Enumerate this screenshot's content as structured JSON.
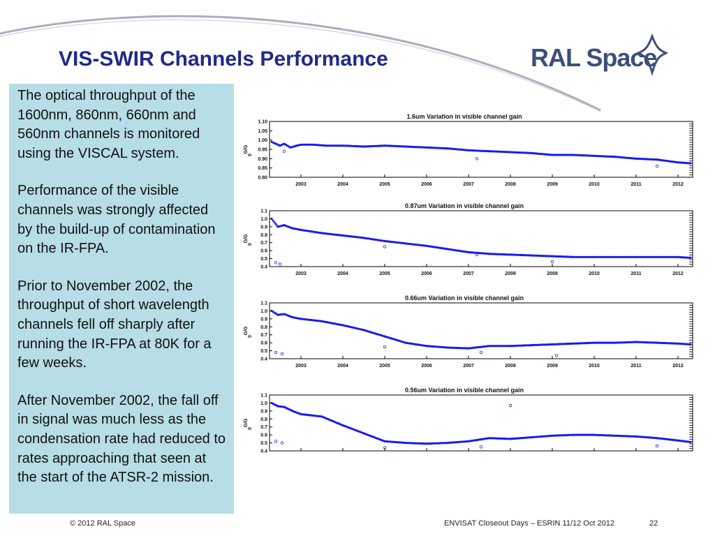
{
  "slide": {
    "title": "VIS-SWIR Channels Performance",
    "logo_text": "RAL Space",
    "paragraphs": [
      "The optical throughput of the 1600nm, 860nm, 660nm and 560nm channels is monitored using the VISCAL system.",
      "Performance of the visible channels was strongly affected by the build-up of contamination on the IR-FPA.",
      "Prior to November 2002, the throughput of short wavelength channels fell off sharply after running the IR-FPA at 80K for a few weeks.",
      "After November 2002, the fall off in signal was much less as the condensation rate had reduced to rates approaching that seen at the start of the ATSR-2 mission."
    ]
  },
  "footer": {
    "copyright": "© 2012 RAL Space",
    "event": "ENVISAT Closeout Days – ESRIN 11/12 Oct 2012",
    "page_number": "22"
  },
  "colors": {
    "title": "#1f2a8a",
    "textbox_bg": "#b7dde6",
    "series": "#1a1aee",
    "swoosh": "#a9b0bc"
  },
  "chart_data": [
    {
      "type": "scatter",
      "title": "1.6um Variation in visible channel gain",
      "ylabel": "G/G",
      "ylabel_sub": "0",
      "ylim": [
        0.8,
        1.1
      ],
      "yticks": [
        0.8,
        0.85,
        0.9,
        0.95,
        1.0,
        1.05,
        1.1
      ],
      "ytick_labels": [
        "0.80",
        "0.85",
        "0.90",
        "0.95",
        "1.00",
        "1.05",
        "1.10"
      ],
      "xlim": [
        2002.25,
        2012.35
      ],
      "xticks": [
        2003,
        2004,
        2005,
        2006,
        2007,
        2008,
        2009,
        2010,
        2011,
        2012
      ],
      "xtick_labels": [
        "2003",
        "2004",
        "2005",
        "2006",
        "2007",
        "2008",
        "2009",
        "2010",
        "2011",
        "2012"
      ],
      "series": [
        {
          "x": [
            2002.3,
            2002.4,
            2002.5,
            2002.6,
            2002.75,
            2002.9,
            2003.0,
            2003.3,
            2003.6,
            2004.0,
            2004.5,
            2005.0,
            2005.5,
            2006.0,
            2006.5,
            2007.0,
            2007.5,
            2008.0,
            2008.5,
            2009.0,
            2009.5,
            2010.0,
            2010.5,
            2011.0,
            2011.5,
            2012.0,
            2012.3
          ],
          "y": [
            0.99,
            0.98,
            0.97,
            0.98,
            0.96,
            0.97,
            0.975,
            0.975,
            0.97,
            0.97,
            0.965,
            0.97,
            0.965,
            0.96,
            0.955,
            0.945,
            0.94,
            0.935,
            0.93,
            0.92,
            0.92,
            0.915,
            0.91,
            0.9,
            0.895,
            0.88,
            0.875
          ]
        }
      ],
      "outliers": {
        "x": [
          2002.6,
          2007.2,
          2011.5
        ],
        "y": [
          0.94,
          0.9,
          0.86
        ]
      }
    },
    {
      "type": "scatter",
      "title": "0.87um Variation in visible channel gain",
      "ylabel": "G/G",
      "ylabel_sub": "0",
      "ylim": [
        0.4,
        1.1
      ],
      "yticks": [
        0.4,
        0.5,
        0.6,
        0.7,
        0.8,
        0.9,
        1.0,
        1.1
      ],
      "ytick_labels": [
        "0.4",
        "0.5",
        "0.6",
        "0.7",
        "0.8",
        "0.9",
        "1.0",
        "1.1"
      ],
      "xlim": [
        2002.25,
        2012.35
      ],
      "xticks": [
        2003,
        2004,
        2005,
        2006,
        2007,
        2008,
        2009,
        2010,
        2011,
        2012
      ],
      "xtick_labels": [
        "2003",
        "2004",
        "2005",
        "2006",
        "2007",
        "2008",
        "2009",
        "2010",
        "2011",
        "2012"
      ],
      "series": [
        {
          "x": [
            2002.3,
            2002.45,
            2002.6,
            2002.8,
            2003.0,
            2003.5,
            2004.0,
            2004.5,
            2005.0,
            2005.5,
            2006.0,
            2006.5,
            2007.0,
            2007.5,
            2008.0,
            2008.5,
            2009.0,
            2009.5,
            2010.0,
            2010.5,
            2011.0,
            2011.5,
            2012.0,
            2012.3
          ],
          "y": [
            1.0,
            0.9,
            0.92,
            0.88,
            0.86,
            0.82,
            0.79,
            0.76,
            0.72,
            0.69,
            0.66,
            0.62,
            0.58,
            0.56,
            0.55,
            0.54,
            0.53,
            0.52,
            0.52,
            0.52,
            0.52,
            0.52,
            0.52,
            0.51
          ]
        }
      ],
      "outliers": {
        "x": [
          2002.4,
          2002.5,
          2005.0,
          2007.2,
          2009.0
        ],
        "y": [
          0.45,
          0.43,
          0.65,
          0.55,
          0.46
        ]
      }
    },
    {
      "type": "scatter",
      "title": "0.66um Variation in visible channel gain",
      "ylabel": "G/G",
      "ylabel_sub": "0",
      "ylim": [
        0.4,
        1.1
      ],
      "yticks": [
        0.4,
        0.5,
        0.6,
        0.7,
        0.8,
        0.9,
        1.0,
        1.1
      ],
      "ytick_labels": [
        "0.4",
        "0.5",
        "0.6",
        "0.7",
        "0.8",
        "0.9",
        "1.0",
        "1.1"
      ],
      "xlim": [
        2002.25,
        2012.35
      ],
      "xticks": [
        2003,
        2004,
        2005,
        2006,
        2007,
        2008,
        2009,
        2010,
        2011,
        2012
      ],
      "xtick_labels": [
        "2003",
        "2004",
        "2005",
        "2006",
        "2007",
        "2008",
        "2009",
        "2010",
        "2011",
        "2012"
      ],
      "series": [
        {
          "x": [
            2002.3,
            2002.45,
            2002.6,
            2002.8,
            2003.0,
            2003.5,
            2004.0,
            2004.5,
            2005.0,
            2005.5,
            2006.0,
            2006.5,
            2007.0,
            2007.5,
            2008.0,
            2008.5,
            2009.0,
            2009.5,
            2010.0,
            2010.5,
            2011.0,
            2011.5,
            2012.0,
            2012.3
          ],
          "y": [
            1.0,
            0.95,
            0.96,
            0.92,
            0.9,
            0.87,
            0.82,
            0.76,
            0.68,
            0.6,
            0.56,
            0.54,
            0.53,
            0.56,
            0.56,
            0.57,
            0.58,
            0.59,
            0.6,
            0.6,
            0.61,
            0.6,
            0.59,
            0.58
          ]
        }
      ],
      "outliers": {
        "x": [
          2002.4,
          2002.55,
          2005.0,
          2007.3,
          2009.1
        ],
        "y": [
          0.48,
          0.46,
          0.55,
          0.48,
          0.44
        ]
      }
    },
    {
      "type": "scatter",
      "title": "0.56um Variation in visible channel gain",
      "ylabel": "G/G",
      "ylabel_sub": "0",
      "ylim": [
        0.4,
        1.1
      ],
      "yticks": [
        0.4,
        0.5,
        0.6,
        0.7,
        0.8,
        0.9,
        1.0,
        1.1
      ],
      "ytick_labels": [
        "0.4",
        "0.5",
        "0.6",
        "0.7",
        "0.8",
        "0.9",
        "1.0",
        "1.1"
      ],
      "xlim": [
        2002.25,
        2012.35
      ],
      "xticks": [
        2003,
        2004,
        2005,
        2006,
        2007,
        2008,
        2009,
        2010,
        2011,
        2012
      ],
      "xtick_labels": [
        "2003",
        "2004",
        "2005",
        "2006",
        "2007",
        "2008",
        "2009",
        "2010",
        "2011",
        "2012"
      ],
      "series": [
        {
          "x": [
            2002.3,
            2002.45,
            2002.6,
            2002.8,
            2003.0,
            2003.5,
            2004.0,
            2004.5,
            2005.0,
            2005.5,
            2006.0,
            2006.5,
            2007.0,
            2007.5,
            2008.0,
            2008.5,
            2009.0,
            2009.5,
            2010.0,
            2010.5,
            2011.0,
            2011.5,
            2012.0,
            2012.3
          ],
          "y": [
            1.0,
            0.96,
            0.95,
            0.9,
            0.86,
            0.83,
            0.72,
            0.62,
            0.52,
            0.5,
            0.49,
            0.5,
            0.52,
            0.56,
            0.55,
            0.57,
            0.59,
            0.6,
            0.6,
            0.59,
            0.58,
            0.56,
            0.53,
            0.51
          ]
        }
      ],
      "outliers": {
        "x": [
          2002.4,
          2002.55,
          2005.0,
          2007.3,
          2008.0,
          2011.5
        ],
        "y": [
          0.52,
          0.5,
          0.44,
          0.45,
          0.97,
          0.46
        ]
      }
    }
  ]
}
